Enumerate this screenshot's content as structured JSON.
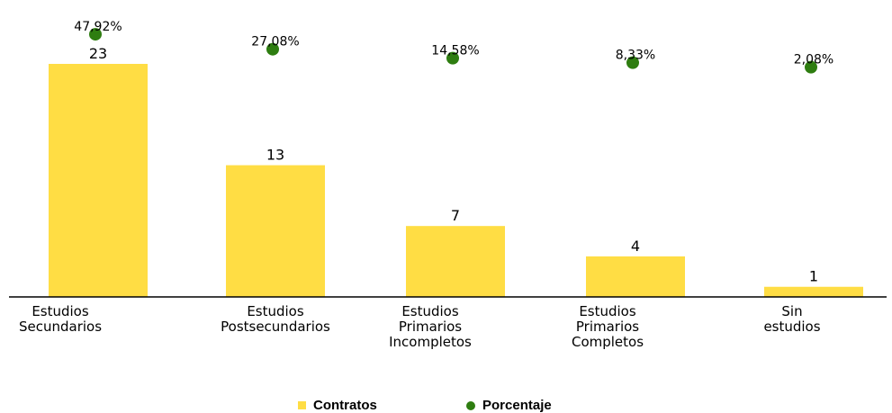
{
  "chart_data": {
    "type": "bar",
    "categories": [
      [
        "Estudios",
        "Secundarios"
      ],
      [
        "Estudios",
        "Postsecundarios"
      ],
      [
        "Estudios",
        "Primarios",
        "Incompletos"
      ],
      [
        "Estudios",
        "Primarios",
        "Completos"
      ],
      [
        "Sin",
        "estudios"
      ]
    ],
    "series": [
      {
        "name": "Contratos",
        "kind": "bar",
        "values": [
          23,
          13,
          7,
          4,
          1
        ],
        "labels": [
          "23",
          "13",
          "7",
          "4",
          "1"
        ],
        "color": "#FFDD44"
      },
      {
        "name": "Porcentaje",
        "kind": "point",
        "values": [
          47.92,
          27.08,
          14.58,
          8.33,
          2.08
        ],
        "labels": [
          "47,92%",
          "27,08%",
          "14,58%",
          "8,33%",
          "2,08%"
        ],
        "color": "#2E7D10"
      }
    ],
    "legend_position": "bottom",
    "grid": false
  },
  "legend": {
    "contratos": "Contratos",
    "porcentaje": "Porcentaje"
  },
  "colors": {
    "bar": "#FFDD44",
    "point": "#2E7D10",
    "axis": "#000000"
  }
}
